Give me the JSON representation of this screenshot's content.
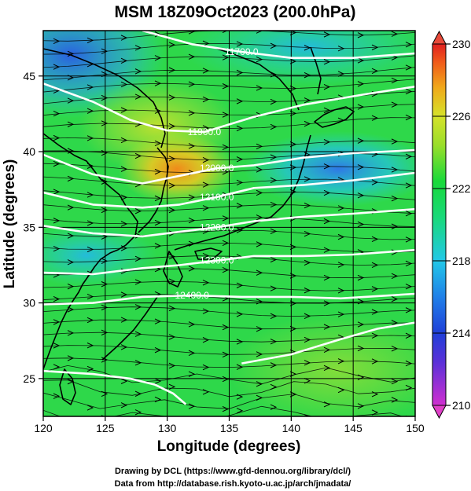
{
  "title": "MSM 18Z09Oct2023 (200.0hPa)",
  "xlabel": "Longitude (degrees)",
  "ylabel": "Latitude  (degrees)",
  "x_ticks": [
    "120",
    "125",
    "130",
    "135",
    "140",
    "145",
    "150"
  ],
  "y_ticks": [
    "25",
    "30",
    "35",
    "40",
    "45"
  ],
  "colorbar_ticks": [
    "210",
    "214",
    "218",
    "222",
    "226",
    "230"
  ],
  "credits": {
    "line1": "Drawing by DCL (https://www.gfd-dennou.org/library/dcl/)",
    "line2": "Data from http://database.rish.kyoto-u.ac.jp/arch/jmadata/"
  },
  "contour_labels": [
    "11700.0",
    "11900.0",
    "12000.0",
    "12100.0",
    "12200.0",
    "12300.0",
    "12400.0"
  ],
  "colors": {
    "cb_magenta": "#d02fd0",
    "cb_blue": "#1f3fd8",
    "cb_cyan": "#22c8e8",
    "cb_green": "#19d93a",
    "cb_yellow": "#d6e22a",
    "cb_orange": "#f08a1a",
    "cb_red": "#e02020",
    "contour": "#ffffff",
    "coast": "#000000"
  },
  "chart_data": {
    "type": "heatmap",
    "title": "MSM 18Z09Oct2023 (200.0hPa)",
    "xlabel": "Longitude (degrees)",
    "ylabel": "Latitude  (degrees)",
    "xlim": [
      120,
      150
    ],
    "ylim": [
      22.5,
      48
    ],
    "colorbar_range": [
      210,
      230
    ],
    "contours": [
      {
        "label": "11700.0",
        "points": [
          [
            128,
            48
          ],
          [
            132,
            47.1
          ],
          [
            136,
            46.6
          ],
          [
            140,
            46.2
          ],
          [
            145,
            46.2
          ],
          [
            150,
            46.5
          ]
        ]
      },
      {
        "label": "11900.0",
        "points": [
          [
            120,
            44.5
          ],
          [
            124,
            43.3
          ],
          [
            127,
            42.1
          ],
          [
            130,
            41.4
          ],
          [
            133,
            41.3
          ],
          [
            137,
            42.3
          ],
          [
            141,
            43.1
          ],
          [
            146,
            43.8
          ],
          [
            150,
            44.3
          ]
        ]
      },
      {
        "label": "12000.0",
        "points": [
          [
            120,
            39.8
          ],
          [
            124,
            38.5
          ],
          [
            128,
            37.9
          ],
          [
            131,
            38.4
          ],
          [
            134,
            38.9
          ],
          [
            137,
            39.1
          ],
          [
            141,
            39.6
          ],
          [
            145,
            39.9
          ],
          [
            150,
            40.1
          ]
        ]
      },
      {
        "label": "12100.0",
        "points": [
          [
            120,
            37.3
          ],
          [
            124,
            36.5
          ],
          [
            128,
            36.3
          ],
          [
            131,
            36.5
          ],
          [
            134,
            37.0
          ],
          [
            137,
            37.6
          ],
          [
            141,
            37.8
          ],
          [
            145,
            38.1
          ],
          [
            150,
            38.6
          ]
        ]
      },
      {
        "label": "12200.0",
        "points": [
          [
            120,
            35.1
          ],
          [
            124,
            34.6
          ],
          [
            128,
            34.4
          ],
          [
            131,
            34.7
          ],
          [
            134,
            35.0
          ],
          [
            137,
            35.4
          ],
          [
            141,
            35.7
          ],
          [
            145,
            35.9
          ],
          [
            150,
            36.2
          ]
        ]
      },
      {
        "label": "12300.0",
        "points": [
          [
            120,
            32.0
          ],
          [
            124,
            31.9
          ],
          [
            128,
            32.3
          ],
          [
            131,
            32.5
          ],
          [
            134,
            32.8
          ],
          [
            137,
            33.1
          ],
          [
            141,
            33.1
          ],
          [
            145,
            33.2
          ],
          [
            150,
            33.5
          ]
        ]
      },
      {
        "label": "12400.0",
        "points": [
          [
            120,
            29.9
          ],
          [
            124,
            30.0
          ],
          [
            128,
            30.4
          ],
          [
            132,
            30.5
          ],
          [
            136,
            30.4
          ],
          [
            140,
            30.4
          ],
          [
            144,
            30.3
          ],
          [
            150,
            30.6
          ]
        ]
      },
      {
        "label": "",
        "points": [
          [
            136,
            26.0
          ],
          [
            140,
            26.6
          ],
          [
            144,
            27.6
          ],
          [
            147,
            28.3
          ],
          [
            150,
            28.7
          ]
        ]
      },
      {
        "label": "",
        "points": [
          [
            120,
            25.5
          ],
          [
            124,
            25.3
          ],
          [
            127,
            25.0
          ],
          [
            129,
            24.6
          ],
          [
            130.5,
            24.0
          ],
          [
            131.5,
            23.3
          ]
        ]
      }
    ]
  }
}
